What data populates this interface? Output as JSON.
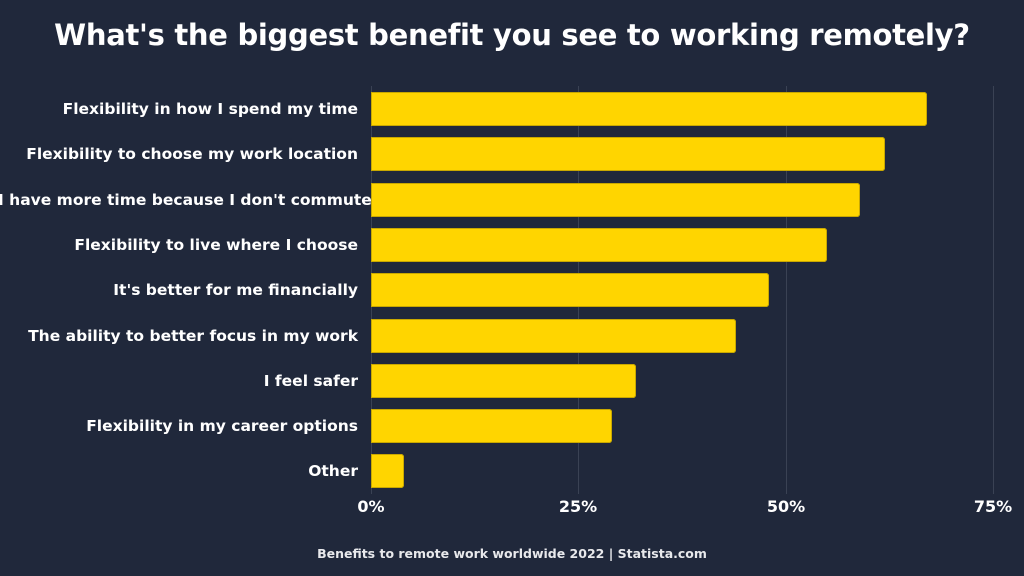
{
  "title": "What's the biggest benefit you see to working remotely?",
  "footer": "Benefits to remote work worldwide 2022 | Statista.com",
  "colors": {
    "background": "#20283b",
    "bar": "#ffd500",
    "grid": "#3a4254",
    "text": "#ffffff"
  },
  "axis": {
    "ticks": [
      "0%",
      "25%",
      "50%",
      "75%"
    ]
  },
  "chart_data": {
    "type": "bar",
    "orientation": "horizontal",
    "title": "What's the biggest benefit you see to working remotely?",
    "categories": [
      "Flexibility in how I spend my time",
      "Flexibility to choose my work location",
      "I have more time because I don't commute",
      "Flexibility to live where I choose",
      "It's better for me financially",
      "The ability to better focus in my work",
      "I feel safer",
      "Flexibility in my career options",
      "Other"
    ],
    "values": [
      67,
      62,
      59,
      55,
      48,
      44,
      32,
      29,
      4
    ],
    "xlabel": "",
    "ylabel": "",
    "xlim": [
      0,
      75
    ],
    "xticks": [
      "0%",
      "25%",
      "50%",
      "75%"
    ],
    "grid": true,
    "legend": null,
    "source": "Benefits to remote work worldwide 2022 | Statista.com"
  }
}
